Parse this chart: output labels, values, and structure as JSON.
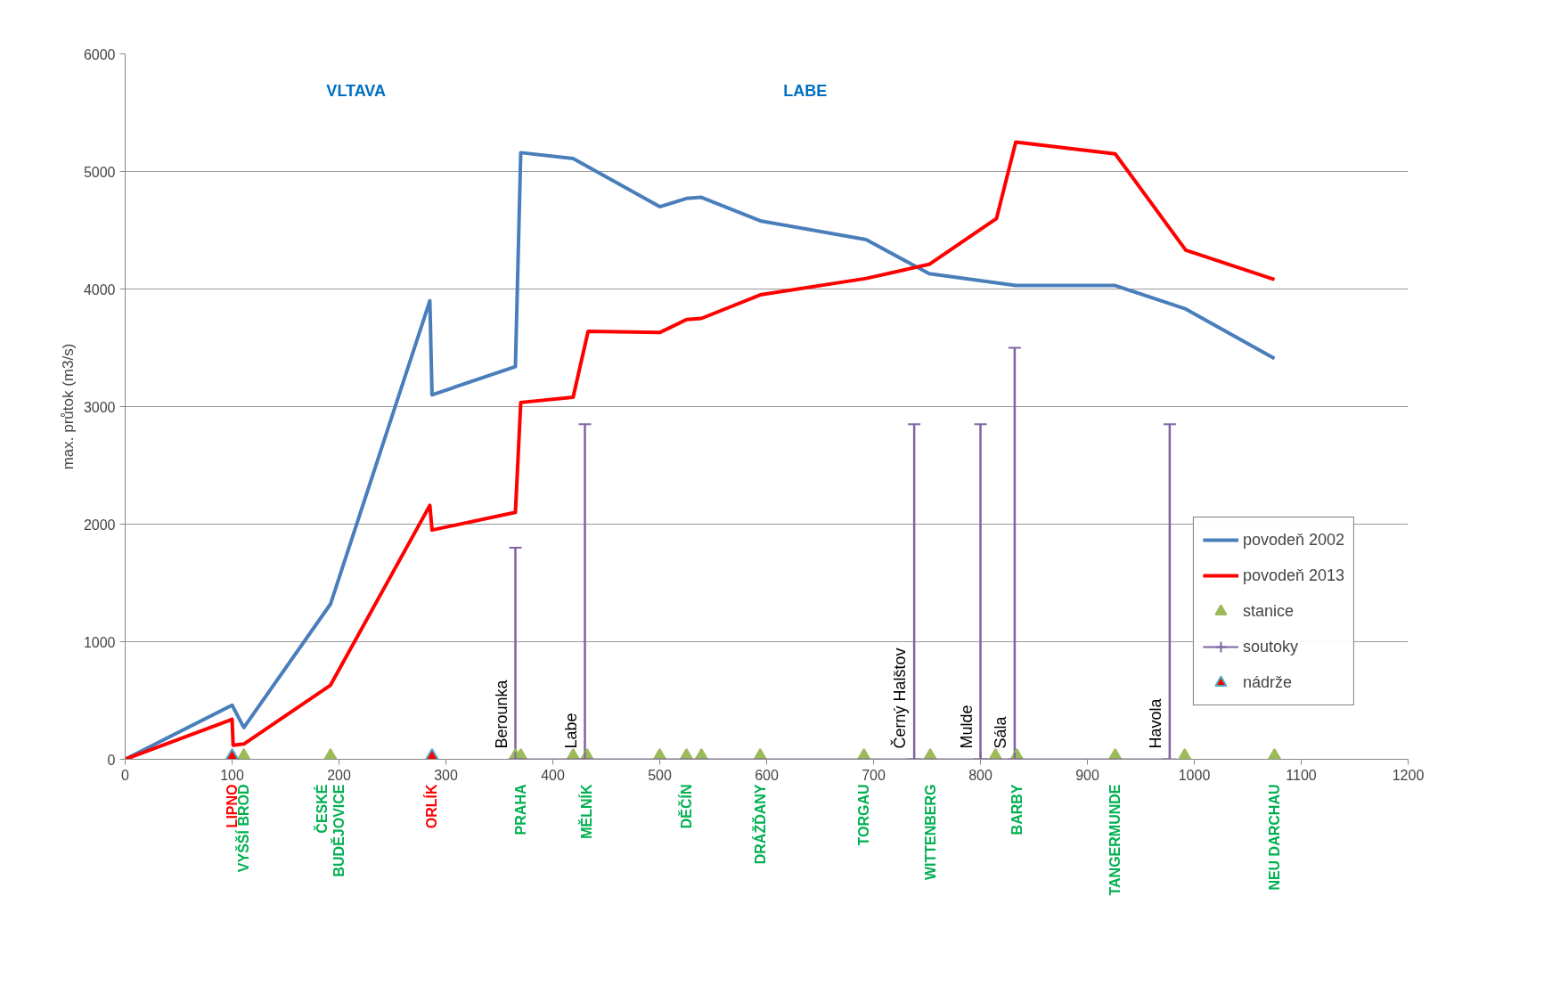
{
  "chart_data": {
    "type": "line",
    "ylabel": "max. průtok (m3/s)",
    "xlim": [
      0,
      1200
    ],
    "xticks": [
      0,
      100,
      200,
      300,
      400,
      500,
      600,
      700,
      800,
      900,
      1000,
      1100,
      1200
    ],
    "ylim": [
      0,
      6000
    ],
    "yticks": [
      0,
      1000,
      2000,
      3000,
      4000,
      5000,
      6000
    ],
    "grid": "y",
    "legend": "bottom right",
    "series": [
      {
        "name": "povodeň 2002",
        "color": "#4a7ebb",
        "x": [
          0,
          100,
          111,
          192,
          285,
          287,
          365,
          370,
          419,
          500,
          525,
          539,
          594,
          693,
          752,
          833,
          926,
          992,
          1075
        ],
        "values": [
          0,
          460,
          270,
          1320,
          3900,
          3100,
          3340,
          5160,
          5110,
          4700,
          4770,
          4780,
          4580,
          4420,
          4130,
          4030,
          4030,
          3830,
          3410
        ]
      },
      {
        "name": "povodeň 2013",
        "color": "#ff0000",
        "x": [
          0,
          100,
          101,
          111,
          192,
          285,
          287,
          365,
          370,
          419,
          433,
          500,
          525,
          539,
          594,
          693,
          752,
          815,
          833,
          926,
          992,
          1075
        ],
        "values": [
          0,
          340,
          120,
          130,
          630,
          2160,
          1950,
          2100,
          3035,
          3080,
          3640,
          3630,
          3740,
          3750,
          3950,
          4090,
          4210,
          4600,
          5250,
          5150,
          4330,
          4080
        ]
      },
      {
        "name": "stanice",
        "type": "scatter",
        "marker": "triangle",
        "color": "#9bbb59",
        "x": [
          111,
          192,
          365,
          370,
          419,
          432,
          500,
          525,
          539,
          594,
          691,
          753,
          814,
          834,
          926,
          991,
          1075
        ],
        "values": [
          0,
          0,
          0,
          0,
          0,
          0,
          0,
          0,
          0,
          0,
          0,
          0,
          0,
          0,
          0,
          0,
          0
        ],
        "value_labels": [
          "VYŠŠÍ BROD",
          "ČESKÉ\nBUDĚJOVICE",
          null,
          "PRAHA",
          null,
          "MĚLNÍK",
          null,
          "DĚČÍN",
          null,
          "DRÁŽĎANY",
          "TORGAU",
          "WITTENBERG",
          null,
          "BARBY",
          "TANGERMUNDE",
          null,
          "NEU DARCHAU"
        ]
      },
      {
        "name": "soutoky",
        "marker": "cross",
        "color": "#8064a2",
        "x": [
          365,
          430,
          738,
          800,
          832,
          977
        ],
        "values": [
          0,
          0,
          0,
          0,
          0,
          0
        ],
        "errors": [
          [
            0,
            1800
          ],
          [
            0,
            2850
          ],
          [
            0,
            2850
          ],
          [
            0,
            2850
          ],
          [
            0,
            3500
          ],
          [
            0,
            2850
          ]
        ],
        "value_labels": [
          "Berounka",
          "Labe",
          "Černý Halštov",
          "Mulde",
          "Sála",
          "Havola"
        ]
      },
      {
        "name": "nádrže",
        "type": "scatter",
        "marker": "triangle",
        "color": "#ff0000",
        "x": [
          100,
          287
        ],
        "values": [
          0,
          0
        ],
        "value_labels": [
          "LIPNO",
          "ORLÍK"
        ]
      }
    ],
    "annotations": [
      "VLTAVA",
      "LABE"
    ]
  }
}
